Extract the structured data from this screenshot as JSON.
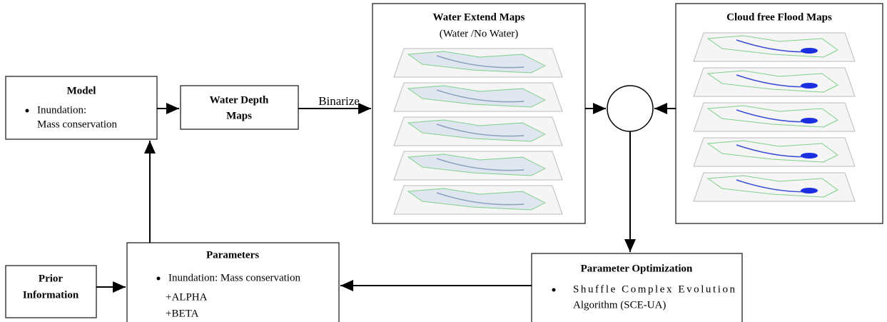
{
  "nodes": {
    "model": {
      "title": "Model",
      "bullet": [
        "Inundation:",
        "Mass conservation"
      ]
    },
    "water_depth": {
      "title": [
        "Water Depth",
        "Maps"
      ]
    },
    "binarize": {
      "label": "Binarize"
    },
    "water_extent": {
      "title": "Water Extend Maps",
      "subtitle": "(Water /No Water)"
    },
    "cloud_free": {
      "title": "Cloud free Flood Maps"
    },
    "prior": {
      "title": [
        "Prior",
        "Information"
      ]
    },
    "parameters": {
      "title": "Parameters",
      "bullet": "Inundation: Mass conservation",
      "items": [
        "+ALPHA",
        "+BETA"
      ]
    },
    "optimization": {
      "title": "Parameter Optimization",
      "bullet": [
        "Shuffle Complex Evolution",
        "Algorithm (SCE-UA)"
      ]
    }
  }
}
